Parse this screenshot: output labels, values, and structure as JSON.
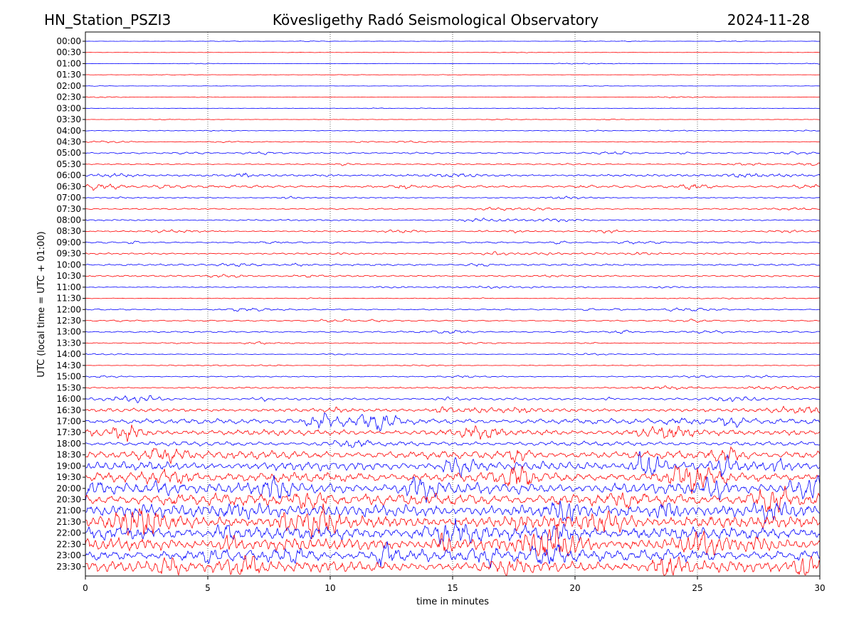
{
  "header": {
    "station": "HN_Station_PSZI3",
    "observatory": "Kövesligethy Radó Seismological Observatory",
    "date": "2024-11-28"
  },
  "chart_data": {
    "type": "line",
    "subtype": "helicorder",
    "xlabel": "time in minutes",
    "ylabel": "UTC (local time = UTC + 01:00)",
    "xlim": [
      0,
      30
    ],
    "x_ticks": [
      0,
      5,
      10,
      15,
      20,
      25,
      30
    ],
    "vertical_gridlines": true,
    "trace_colors": [
      "#0000ff",
      "#ff0000"
    ],
    "rows": [
      {
        "label": "00:00",
        "amplitude": 0.4
      },
      {
        "label": "00:30",
        "amplitude": 0.4
      },
      {
        "label": "01:00",
        "amplitude": 0.4
      },
      {
        "label": "01:30",
        "amplitude": 0.4
      },
      {
        "label": "02:00",
        "amplitude": 0.4
      },
      {
        "label": "02:30",
        "amplitude": 0.4
      },
      {
        "label": "03:00",
        "amplitude": 0.5
      },
      {
        "label": "03:30",
        "amplitude": 0.5
      },
      {
        "label": "04:00",
        "amplitude": 0.7
      },
      {
        "label": "04:30",
        "amplitude": 1.0
      },
      {
        "label": "05:00",
        "amplitude": 1.5
      },
      {
        "label": "05:30",
        "amplitude": 1.3
      },
      {
        "label": "06:00",
        "amplitude": 2.5
      },
      {
        "label": "06:30",
        "amplitude": 2.8
      },
      {
        "label": "07:00",
        "amplitude": 1.2
      },
      {
        "label": "07:30",
        "amplitude": 1.5
      },
      {
        "label": "08:00",
        "amplitude": 1.6
      },
      {
        "label": "08:30",
        "amplitude": 1.5
      },
      {
        "label": "09:00",
        "amplitude": 1.8
      },
      {
        "label": "09:30",
        "amplitude": 1.8
      },
      {
        "label": "10:00",
        "amplitude": 2.0
      },
      {
        "label": "10:30",
        "amplitude": 1.8
      },
      {
        "label": "11:00",
        "amplitude": 1.0
      },
      {
        "label": "11:30",
        "amplitude": 0.8
      },
      {
        "label": "12:00",
        "amplitude": 1.5
      },
      {
        "label": "12:30",
        "amplitude": 1.5
      },
      {
        "label": "13:00",
        "amplitude": 1.8
      },
      {
        "label": "13:30",
        "amplitude": 1.0
      },
      {
        "label": "14:00",
        "amplitude": 0.8
      },
      {
        "label": "14:30",
        "amplitude": 0.7
      },
      {
        "label": "15:00",
        "amplitude": 1.3
      },
      {
        "label": "15:30",
        "amplitude": 1.8
      },
      {
        "label": "16:00",
        "amplitude": 2.5
      },
      {
        "label": "16:30",
        "amplitude": 4.0
      },
      {
        "label": "17:00",
        "amplitude": 6.0
      },
      {
        "label": "17:30",
        "amplitude": 6.5
      },
      {
        "label": "18:00",
        "amplitude": 5.0
      },
      {
        "label": "18:30",
        "amplitude": 9.0
      },
      {
        "label": "19:00",
        "amplitude": 10.0
      },
      {
        "label": "19:30",
        "amplitude": 11.0
      },
      {
        "label": "20:00",
        "amplitude": 13.0
      },
      {
        "label": "20:30",
        "amplitude": 14.0
      },
      {
        "label": "21:00",
        "amplitude": 14.0
      },
      {
        "label": "21:30",
        "amplitude": 14.0
      },
      {
        "label": "22:00",
        "amplitude": 14.5
      },
      {
        "label": "22:30",
        "amplitude": 14.0
      },
      {
        "label": "23:00",
        "amplitude": 13.5
      },
      {
        "label": "23:30",
        "amplitude": 12.5
      }
    ]
  }
}
